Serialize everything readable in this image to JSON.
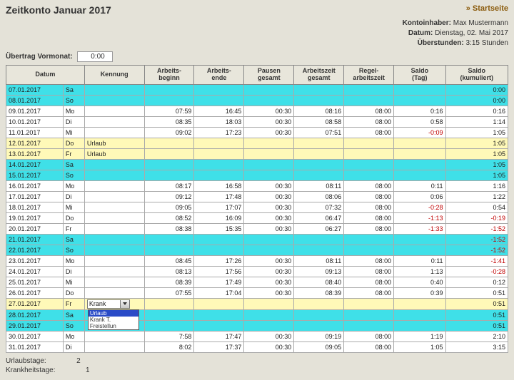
{
  "title": "Zeitkonto Januar 2017",
  "homeLink": "» Startseite",
  "meta": {
    "holderLabel": "Kontoinhaber:",
    "holder": "Max Mustermann",
    "dateLabel": "Datum:",
    "date": "Dienstag, 02. Mai 2017",
    "overtimeLabel": "Überstunden:",
    "overtime": "3:15 Stunden"
  },
  "carry": {
    "label": "Übertrag Vormonat:",
    "value": "0:00"
  },
  "headers": {
    "datum": "Datum",
    "kennung": "Kennung",
    "beginn": "Arbeits-\nbeginn",
    "ende": "Arbeits-\nende",
    "pausen": "Pausen\ngesamt",
    "arbeit": "Arbeitszeit\ngesamt",
    "regel": "Regel-\narbeitszeit",
    "saldoTag": "Saldo\n(Tag)",
    "saldoKum": "Saldo\n(kumuliert)"
  },
  "rows": [
    {
      "d": "07.01.2017",
      "w": "Sa",
      "k": "",
      "b": "",
      "e": "",
      "p": "",
      "a": "",
      "r": "",
      "s": "",
      "kum": "0:00",
      "cls": "we"
    },
    {
      "d": "08.01.2017",
      "w": "So",
      "k": "",
      "b": "",
      "e": "",
      "p": "",
      "a": "",
      "r": "",
      "s": "",
      "kum": "0:00",
      "cls": "we"
    },
    {
      "d": "09.01.2017",
      "w": "Mo",
      "k": "",
      "b": "07:59",
      "e": "16:45",
      "p": "00:30",
      "a": "08:16",
      "r": "08:00",
      "s": "0:16",
      "kum": "0:16",
      "cls": ""
    },
    {
      "d": "10.01.2017",
      "w": "Di",
      "k": "",
      "b": "08:35",
      "e": "18:03",
      "p": "00:30",
      "a": "08:58",
      "r": "08:00",
      "s": "0:58",
      "kum": "1:14",
      "cls": ""
    },
    {
      "d": "11.01.2017",
      "w": "Mi",
      "k": "",
      "b": "09:02",
      "e": "17:23",
      "p": "00:30",
      "a": "07:51",
      "r": "08:00",
      "s": "-0:09",
      "kum": "1:05",
      "cls": "",
      "neg": true
    },
    {
      "d": "12.01.2017",
      "w": "Do",
      "k": "Urlaub",
      "b": "",
      "e": "",
      "p": "",
      "a": "",
      "r": "",
      "s": "",
      "kum": "1:05",
      "cls": "ho"
    },
    {
      "d": "13.01.2017",
      "w": "Fr",
      "k": "Urlaub",
      "b": "",
      "e": "",
      "p": "",
      "a": "",
      "r": "",
      "s": "",
      "kum": "1:05",
      "cls": "ho"
    },
    {
      "d": "14.01.2017",
      "w": "Sa",
      "k": "",
      "b": "",
      "e": "",
      "p": "",
      "a": "",
      "r": "",
      "s": "",
      "kum": "1:05",
      "cls": "we"
    },
    {
      "d": "15.01.2017",
      "w": "So",
      "k": "",
      "b": "",
      "e": "",
      "p": "",
      "a": "",
      "r": "",
      "s": "",
      "kum": "1:05",
      "cls": "we"
    },
    {
      "d": "16.01.2017",
      "w": "Mo",
      "k": "",
      "b": "08:17",
      "e": "16:58",
      "p": "00:30",
      "a": "08:11",
      "r": "08:00",
      "s": "0:11",
      "kum": "1:16",
      "cls": ""
    },
    {
      "d": "17.01.2017",
      "w": "Di",
      "k": "",
      "b": "09:12",
      "e": "17:48",
      "p": "00:30",
      "a": "08:06",
      "r": "08:00",
      "s": "0:06",
      "kum": "1:22",
      "cls": ""
    },
    {
      "d": "18.01.2017",
      "w": "Mi",
      "k": "",
      "b": "09:05",
      "e": "17:07",
      "p": "00:30",
      "a": "07:32",
      "r": "08:00",
      "s": "-0:28",
      "kum": "0:54",
      "cls": "",
      "neg": true
    },
    {
      "d": "19.01.2017",
      "w": "Do",
      "k": "",
      "b": "08:52",
      "e": "16:09",
      "p": "00:30",
      "a": "06:47",
      "r": "08:00",
      "s": "-1:13",
      "kum": "-0:19",
      "cls": "",
      "neg": true,
      "knum": true
    },
    {
      "d": "20.01.2017",
      "w": "Fr",
      "k": "",
      "b": "08:38",
      "e": "15:35",
      "p": "00:30",
      "a": "06:27",
      "r": "08:00",
      "s": "-1:33",
      "kum": "-1:52",
      "cls": "",
      "neg": true,
      "knum": true
    },
    {
      "d": "21.01.2017",
      "w": "Sa",
      "k": "",
      "b": "",
      "e": "",
      "p": "",
      "a": "",
      "r": "",
      "s": "",
      "kum": "-1:52",
      "cls": "we",
      "knum": true
    },
    {
      "d": "22.01.2017",
      "w": "So",
      "k": "",
      "b": "",
      "e": "",
      "p": "",
      "a": "",
      "r": "",
      "s": "",
      "kum": "-1:52",
      "cls": "we",
      "knum": true
    },
    {
      "d": "23.01.2017",
      "w": "Mo",
      "k": "",
      "b": "08:45",
      "e": "17:26",
      "p": "00:30",
      "a": "08:11",
      "r": "08:00",
      "s": "0:11",
      "kum": "-1:41",
      "cls": "",
      "knum": true
    },
    {
      "d": "24.01.2017",
      "w": "Di",
      "k": "",
      "b": "08:13",
      "e": "17:56",
      "p": "00:30",
      "a": "09:13",
      "r": "08:00",
      "s": "1:13",
      "kum": "-0:28",
      "cls": "",
      "knum": true
    },
    {
      "d": "25.01.2017",
      "w": "Mi",
      "k": "",
      "b": "08:39",
      "e": "17:49",
      "p": "00:30",
      "a": "08:40",
      "r": "08:00",
      "s": "0:40",
      "kum": "0:12",
      "cls": ""
    },
    {
      "d": "26.01.2017",
      "w": "Do",
      "k": "",
      "b": "07:55",
      "e": "17:04",
      "p": "00:30",
      "a": "08:39",
      "r": "08:00",
      "s": "0:39",
      "kum": "0:51",
      "cls": ""
    },
    {
      "d": "27.01.2017",
      "w": "Fr",
      "k": "Krank",
      "b": "",
      "e": "",
      "p": "",
      "a": "",
      "r": "",
      "s": "",
      "kum": "0:51",
      "cls": "ho",
      "dd": true
    },
    {
      "d": "28.01.2017",
      "w": "Sa",
      "k": "",
      "b": "",
      "e": "",
      "p": "",
      "a": "",
      "r": "",
      "s": "",
      "kum": "0:51",
      "cls": "we"
    },
    {
      "d": "29.01.2017",
      "w": "So",
      "k": "",
      "b": "",
      "e": "",
      "p": "",
      "a": "",
      "r": "",
      "s": "",
      "kum": "0:51",
      "cls": "we"
    },
    {
      "d": "30.01.2017",
      "w": "Mo",
      "k": "",
      "b": "7:58",
      "e": "17:47",
      "p": "00:30",
      "a": "09:19",
      "r": "08:00",
      "s": "1:19",
      "kum": "2:10",
      "cls": ""
    },
    {
      "d": "31.01.2017",
      "w": "Di",
      "k": "",
      "b": "8:02",
      "e": "17:37",
      "p": "00:30",
      "a": "09:05",
      "r": "08:00",
      "s": "1:05",
      "kum": "3:15",
      "cls": ""
    }
  ],
  "dropdown": {
    "selected": "Krank",
    "options": [
      "Urlaub",
      "Krank T.",
      "Freistellun"
    ]
  },
  "footer": {
    "vacLabel": "Urlaubstage:",
    "vacCount": "2",
    "sickLabel": "Krankheitstage:",
    "sickCount": "1"
  }
}
